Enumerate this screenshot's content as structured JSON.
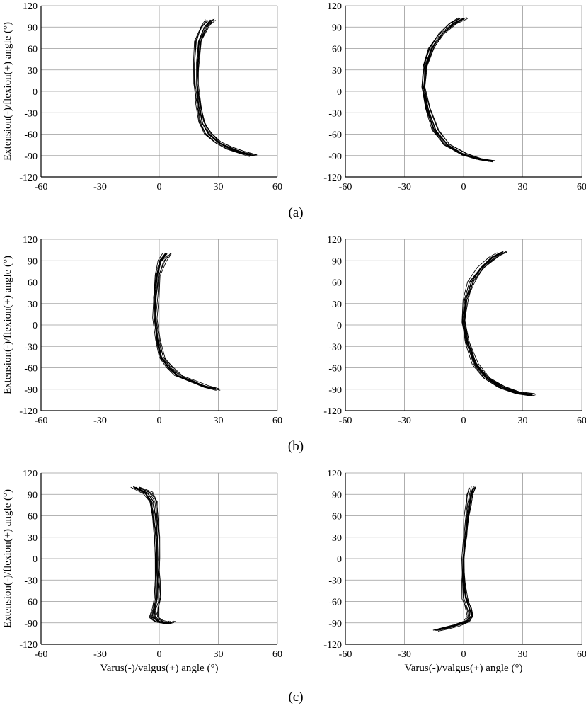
{
  "colors": {
    "line": "#000000",
    "grid": "#9a9a9a",
    "axis": "#000000",
    "background": "#ffffff"
  },
  "chart_data": [
    {
      "type": "line",
      "panel": "a-left",
      "row_label": "(a)",
      "ylabel": "Extension(-)/flexion(+) angle (°)",
      "xlabel": "",
      "xlim": [
        -60,
        60
      ],
      "ylim": [
        -120,
        120
      ],
      "grid": true,
      "xticks": [
        -60,
        -30,
        0,
        30,
        60
      ],
      "yticks": [
        -120,
        -90,
        -60,
        -30,
        0,
        30,
        60,
        90,
        120
      ],
      "x_tick_labels": [
        "-60",
        "-30",
        "0",
        "30",
        "60"
      ],
      "y_tick_labels": [
        "-120",
        "-90",
        "-60",
        "-30",
        "0",
        "30",
        "60",
        "90",
        "120"
      ],
      "series": [
        {
          "x": [
            26,
            23,
            20,
            19,
            19,
            20,
            22,
            25,
            30,
            36,
            42,
            48
          ],
          "y": [
            100,
            90,
            70,
            40,
            10,
            -20,
            -45,
            -60,
            -72,
            -80,
            -86,
            -90
          ]
        }
      ]
    },
    {
      "type": "line",
      "panel": "a-right",
      "row_label": "(a)",
      "ylabel": "",
      "xlabel": "",
      "xlim": [
        -60,
        60
      ],
      "ylim": [
        -120,
        120
      ],
      "grid": true,
      "xticks": [
        -60,
        -30,
        0,
        30,
        60
      ],
      "yticks": [
        -120,
        -90,
        -60,
        -30,
        0,
        30,
        60,
        90,
        120
      ],
      "x_tick_labels": [
        "-60",
        "-30",
        "0",
        "30",
        "60"
      ],
      "y_tick_labels": [
        "-120",
        "-90",
        "-60",
        "-30",
        "0",
        "30",
        "60",
        "90",
        "120"
      ],
      "series": [
        {
          "x": [
            0,
            -5,
            -11,
            -16,
            -19,
            -20,
            -18,
            -14,
            -8,
            0,
            8,
            15
          ],
          "y": [
            102,
            95,
            80,
            60,
            35,
            5,
            -25,
            -55,
            -75,
            -88,
            -95,
            -98
          ]
        }
      ]
    },
    {
      "type": "line",
      "panel": "b-left",
      "row_label": "(b)",
      "ylabel": "Extension(-)/flexion(+) angle (°)",
      "xlabel": "",
      "xlim": [
        -60,
        60
      ],
      "ylim": [
        -120,
        120
      ],
      "grid": true,
      "xticks": [
        -60,
        -30,
        0,
        30,
        60
      ],
      "yticks": [
        -120,
        -90,
        -60,
        -30,
        0,
        30,
        60,
        90,
        120
      ],
      "x_tick_labels": [
        "-60",
        "-30",
        "0",
        "30",
        "60"
      ],
      "y_tick_labels": [
        "-120",
        "-90",
        "-60",
        "-30",
        "0",
        "30",
        "60",
        "90",
        "120"
      ],
      "series": [
        {
          "x": [
            4,
            1,
            -1,
            -2,
            -2,
            -1,
            1,
            5,
            10,
            17,
            23,
            29
          ],
          "y": [
            100,
            90,
            70,
            40,
            10,
            -20,
            -45,
            -60,
            -72,
            -80,
            -86,
            -90
          ]
        }
      ]
    },
    {
      "type": "line",
      "panel": "b-right",
      "row_label": "(b)",
      "ylabel": "",
      "xlabel": "",
      "xlim": [
        -60,
        60
      ],
      "ylim": [
        -120,
        120
      ],
      "grid": true,
      "xticks": [
        -60,
        -30,
        0,
        30,
        60
      ],
      "yticks": [
        -120,
        -90,
        -60,
        -30,
        0,
        30,
        60,
        90,
        120
      ],
      "x_tick_labels": [
        "-60",
        "-30",
        "0",
        "30",
        "60"
      ],
      "y_tick_labels": [
        "-120",
        "-90",
        "-60",
        "-30",
        "0",
        "30",
        "60",
        "90",
        "120"
      ],
      "series": [
        {
          "x": [
            20,
            15,
            9,
            4,
            1,
            0,
            2,
            6,
            12,
            20,
            28,
            35
          ],
          "y": [
            102,
            95,
            80,
            60,
            35,
            5,
            -25,
            -55,
            -75,
            -88,
            -95,
            -98
          ]
        }
      ]
    },
    {
      "type": "line",
      "panel": "c-left",
      "row_label": "(c)",
      "ylabel": "Extension(-)/flexion(+) angle (°)",
      "xlabel": "Varus(-)/valgus(+) angle (°)",
      "xlim": [
        -60,
        60
      ],
      "ylim": [
        -120,
        120
      ],
      "grid": true,
      "xticks": [
        -60,
        -30,
        0,
        30,
        60
      ],
      "yticks": [
        -120,
        -90,
        -60,
        -30,
        0,
        30,
        60,
        90,
        120
      ],
      "x_tick_labels": [
        "-60",
        "-30",
        "0",
        "30",
        "60"
      ],
      "y_tick_labels": [
        "-120",
        "-90",
        "-60",
        "-30",
        "0",
        "30",
        "60",
        "90",
        "120"
      ],
      "series": [
        {
          "x": [
            -12,
            -6,
            -3,
            -2,
            -1,
            -1,
            -1,
            -1,
            -2,
            -3,
            0,
            4,
            6
          ],
          "y": [
            100,
            92,
            80,
            60,
            30,
            0,
            -30,
            -55,
            -70,
            -82,
            -88,
            -90,
            -88
          ]
        }
      ]
    },
    {
      "type": "line",
      "panel": "c-right",
      "row_label": "(c)",
      "ylabel": "",
      "xlabel": "Varus(-)/valgus(+) angle (°)",
      "xlim": [
        -60,
        60
      ],
      "ylim": [
        -120,
        120
      ],
      "grid": true,
      "xticks": [
        -60,
        -30,
        0,
        30,
        60
      ],
      "yticks": [
        -120,
        -90,
        -60,
        -30,
        0,
        30,
        60,
        90,
        120
      ],
      "x_tick_labels": [
        "-60",
        "-30",
        "0",
        "30",
        "60"
      ],
      "y_tick_labels": [
        "-120",
        "-90",
        "-60",
        "-30",
        "0",
        "30",
        "60",
        "90",
        "120"
      ],
      "series": [
        {
          "x": [
            5,
            4,
            3,
            2,
            1,
            0,
            0,
            1,
            3,
            4,
            2,
            -3,
            -8,
            -13
          ],
          "y": [
            100,
            90,
            75,
            55,
            30,
            0,
            -30,
            -55,
            -70,
            -80,
            -88,
            -93,
            -97,
            -100
          ]
        }
      ]
    }
  ],
  "row_labels": [
    "(a)",
    "(b)",
    "(c)"
  ]
}
